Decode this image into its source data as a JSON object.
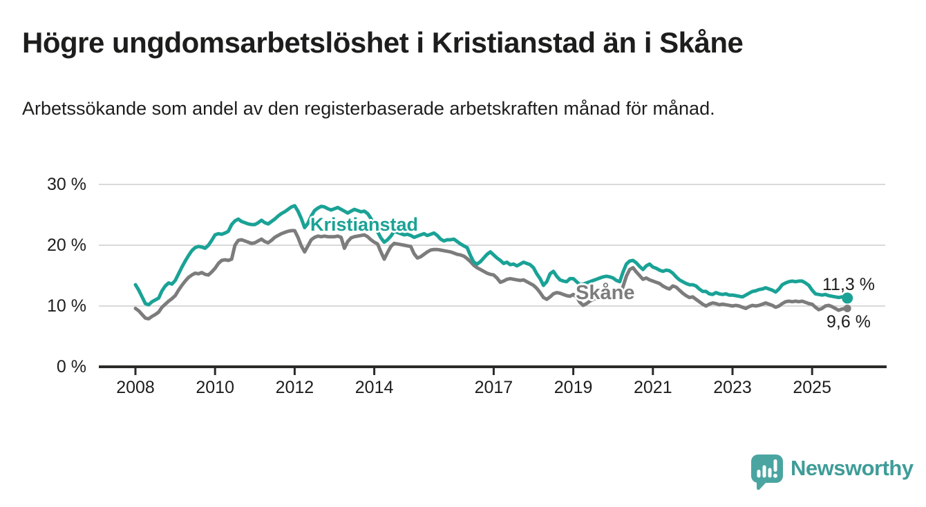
{
  "header": {
    "title": "Högre ungdomsarbetslöshet i Kristianstad än i Skåne",
    "subtitle": "Arbetssökande som andel av den registerbaserade arbetskraften månad för månad."
  },
  "footer": {
    "brand": "Newsworthy"
  },
  "colors": {
    "kristianstad": "#1aa296",
    "skane": "#7c7c7c",
    "gridline": "#d9d9d9",
    "axis": "#2a2a28",
    "text": "#1d1d1b",
    "logo": "#4aa5a1"
  },
  "chart_data": {
    "type": "line",
    "title": "Högre ungdomsarbetslöshet i Kristianstad än i Skåne",
    "subtitle": "Arbetssökande som andel av den registerbaserade arbetskraften månad för månad.",
    "unit": "%",
    "x_range": {
      "start": "2008-01",
      "end": "2025-11",
      "interval": "monthly"
    },
    "ylim": [
      0,
      30
    ],
    "grid": "horizontal",
    "legend_position": "inline-labels",
    "y_ticks": [
      {
        "value": 30,
        "label": "30 %"
      },
      {
        "value": 20,
        "label": "20 %"
      },
      {
        "value": 10,
        "label": "10 %"
      },
      {
        "value": 0,
        "label": "0 %"
      }
    ],
    "x_ticks": [
      {
        "year": 2008,
        "label": "2008"
      },
      {
        "year": 2010,
        "label": "2010"
      },
      {
        "year": 2012,
        "label": "2012"
      },
      {
        "year": 2014,
        "label": "2014"
      },
      {
        "year": 2017,
        "label": "2017"
      },
      {
        "year": 2019,
        "label": "2019"
      },
      {
        "year": 2021,
        "label": "2021"
      },
      {
        "year": 2023,
        "label": "2023"
      },
      {
        "year": 2025,
        "label": "2025"
      }
    ],
    "series": [
      {
        "name": "Kristianstad",
        "color": "#1aa296",
        "end_label": "11,3 %",
        "end_value": 11.3,
        "values": [
          13.5,
          12.6,
          11.5,
          10.4,
          10.2,
          10.7,
          11.0,
          11.3,
          12.5,
          13.3,
          13.8,
          13.6,
          14.2,
          15.3,
          16.4,
          17.4,
          18.3,
          19.1,
          19.6,
          19.8,
          19.7,
          19.5,
          20.0,
          20.8,
          21.7,
          21.9,
          21.8,
          22.0,
          22.3,
          23.4,
          24.0,
          24.3,
          23.9,
          23.7,
          23.5,
          23.4,
          23.4,
          23.7,
          24.1,
          23.7,
          23.5,
          23.9,
          24.3,
          24.8,
          25.2,
          25.5,
          25.9,
          26.3,
          26.5,
          25.6,
          24.4,
          22.9,
          23.6,
          24.8,
          25.7,
          26.1,
          26.4,
          26.3,
          26.0,
          25.8,
          26.0,
          26.2,
          25.9,
          25.6,
          25.3,
          25.6,
          25.9,
          25.7,
          25.5,
          25.6,
          25.2,
          24.4,
          23.2,
          22.2,
          21.2,
          20.5,
          20.9,
          21.5,
          22.3,
          22.1,
          21.9,
          21.7,
          21.8,
          21.6,
          21.3,
          21.5,
          21.7,
          21.9,
          21.6,
          21.8,
          22.0,
          21.6,
          21.0,
          20.7,
          20.9,
          20.9,
          21.0,
          20.6,
          20.2,
          19.9,
          19.6,
          18.3,
          17.2,
          16.9,
          17.3,
          17.9,
          18.5,
          18.9,
          18.4,
          17.9,
          17.5,
          17.0,
          17.2,
          16.8,
          16.9,
          16.6,
          16.9,
          17.2,
          17.0,
          16.8,
          16.3,
          15.3,
          14.5,
          13.4,
          14.0,
          15.3,
          15.7,
          14.9,
          14.3,
          14.1,
          14.0,
          14.5,
          14.5,
          14.0,
          13.5,
          13.6,
          13.8,
          14.0,
          14.2,
          14.4,
          14.6,
          14.8,
          14.9,
          14.8,
          14.6,
          14.2,
          14.0,
          15.6,
          16.9,
          17.4,
          17.5,
          17.1,
          16.5,
          16.0,
          16.6,
          16.9,
          16.4,
          16.2,
          15.9,
          15.7,
          15.9,
          15.8,
          15.4,
          14.8,
          14.3,
          14.0,
          13.7,
          13.5,
          13.5,
          13.3,
          12.8,
          12.4,
          12.4,
          12.0,
          11.9,
          12.2,
          12.0,
          11.9,
          12.0,
          11.8,
          11.8,
          11.7,
          11.6,
          11.5,
          11.8,
          12.1,
          12.4,
          12.5,
          12.7,
          12.8,
          13.0,
          12.8,
          12.6,
          12.3,
          12.8,
          13.5,
          13.8,
          14.0,
          14.1,
          14.0,
          14.1,
          14.1,
          13.8,
          13.4,
          12.6,
          12.0,
          11.9,
          11.8,
          11.9,
          11.7,
          11.6,
          11.5,
          11.4,
          11.5,
          11.3
        ]
      },
      {
        "name": "Skåne",
        "color": "#7c7c7c",
        "end_label": "9,6 %",
        "end_value": 9.6,
        "values": [
          9.6,
          9.2,
          8.6,
          8.0,
          7.9,
          8.3,
          8.6,
          9.0,
          9.8,
          10.3,
          10.8,
          11.2,
          11.7,
          12.6,
          13.4,
          14.1,
          14.7,
          15.1,
          15.4,
          15.3,
          15.5,
          15.2,
          15.1,
          15.6,
          16.2,
          17.0,
          17.5,
          17.6,
          17.5,
          17.7,
          20.0,
          20.8,
          20.9,
          20.7,
          20.5,
          20.3,
          20.4,
          20.7,
          21.0,
          20.6,
          20.4,
          20.8,
          21.3,
          21.6,
          21.9,
          22.1,
          22.3,
          22.4,
          22.4,
          21.3,
          19.9,
          18.9,
          19.9,
          20.9,
          21.3,
          21.5,
          21.4,
          21.5,
          21.4,
          21.4,
          21.4,
          21.5,
          21.3,
          19.5,
          20.6,
          21.2,
          21.4,
          21.5,
          21.6,
          21.7,
          21.4,
          20.9,
          20.5,
          20.2,
          18.9,
          17.7,
          18.8,
          19.8,
          20.3,
          20.2,
          20.1,
          20.0,
          19.9,
          19.8,
          18.6,
          17.9,
          18.1,
          18.5,
          18.9,
          19.2,
          19.3,
          19.3,
          19.2,
          19.1,
          19.0,
          18.9,
          18.7,
          18.5,
          18.4,
          18.2,
          17.8,
          17.3,
          16.7,
          16.3,
          16.0,
          15.7,
          15.4,
          15.2,
          15.1,
          14.6,
          13.9,
          14.1,
          14.4,
          14.5,
          14.4,
          14.3,
          14.2,
          14.3,
          14.0,
          13.7,
          13.4,
          12.9,
          12.2,
          11.4,
          11.1,
          11.5,
          12.0,
          12.2,
          12.1,
          11.9,
          11.7,
          11.6,
          11.9,
          11.5,
          10.6,
          10.1,
          10.4,
          10.8,
          11.1,
          11.3,
          11.4,
          11.5,
          11.7,
          11.9,
          12.1,
          12.0,
          11.8,
          13.2,
          14.9,
          16.0,
          16.3,
          15.6,
          15.0,
          14.4,
          14.6,
          14.3,
          14.1,
          13.9,
          13.7,
          13.3,
          13.0,
          12.8,
          13.3,
          13.1,
          12.6,
          12.1,
          11.7,
          11.4,
          11.5,
          11.1,
          10.7,
          10.3,
          10.0,
          10.3,
          10.5,
          10.4,
          10.2,
          10.3,
          10.2,
          10.1,
          10.0,
          10.1,
          10.0,
          9.8,
          9.6,
          9.9,
          10.1,
          10.0,
          10.1,
          10.3,
          10.5,
          10.3,
          10.1,
          9.8,
          10.0,
          10.4,
          10.7,
          10.8,
          10.7,
          10.8,
          10.7,
          10.8,
          10.6,
          10.4,
          10.3,
          9.8,
          9.4,
          9.6,
          10.0,
          10.1,
          9.9,
          9.6,
          9.3,
          9.5,
          9.6
        ]
      }
    ]
  }
}
